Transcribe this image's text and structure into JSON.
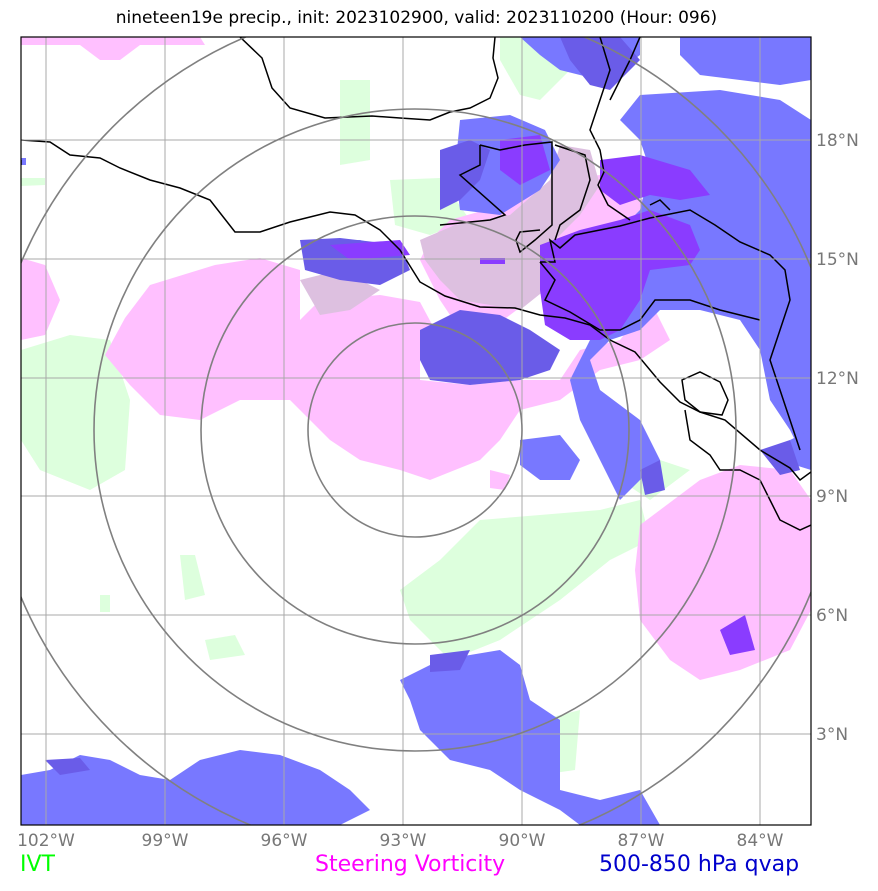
{
  "title": "nineteen19e precip., init: 2023102900, valid: 2023110200 (Hour: 096)",
  "axes": {
    "x_ticks": [
      "102°W",
      "99°W",
      "96°W",
      "93°W",
      "90°W",
      "87°W",
      "84°W"
    ],
    "y_ticks": [
      "18°N",
      "15°N",
      "12°N",
      "9°N",
      "6°N",
      "3°N"
    ],
    "tick_color": "#777777"
  },
  "legend": {
    "ivt": {
      "label": "IVT",
      "color": "#00ff00"
    },
    "steering": {
      "label": "Steering Vorticity",
      "color": "#ff00ff"
    },
    "qvap": {
      "label": "500-850 hPa qvap",
      "color": "#0000cc"
    }
  },
  "colors": {
    "ivt_fill": "#ddffdd",
    "vort_fill": "#ffc0ff",
    "qvap_fill": "#7878ff",
    "qvap_dark": "#6a5ce8",
    "qvap_purple": "#8a3cff",
    "overlap": "#ddc0e0",
    "range_rings": "#808080",
    "coast": "#000000"
  },
  "storm_center": {
    "lon": "93°W",
    "lat": "10.8°N"
  }
}
